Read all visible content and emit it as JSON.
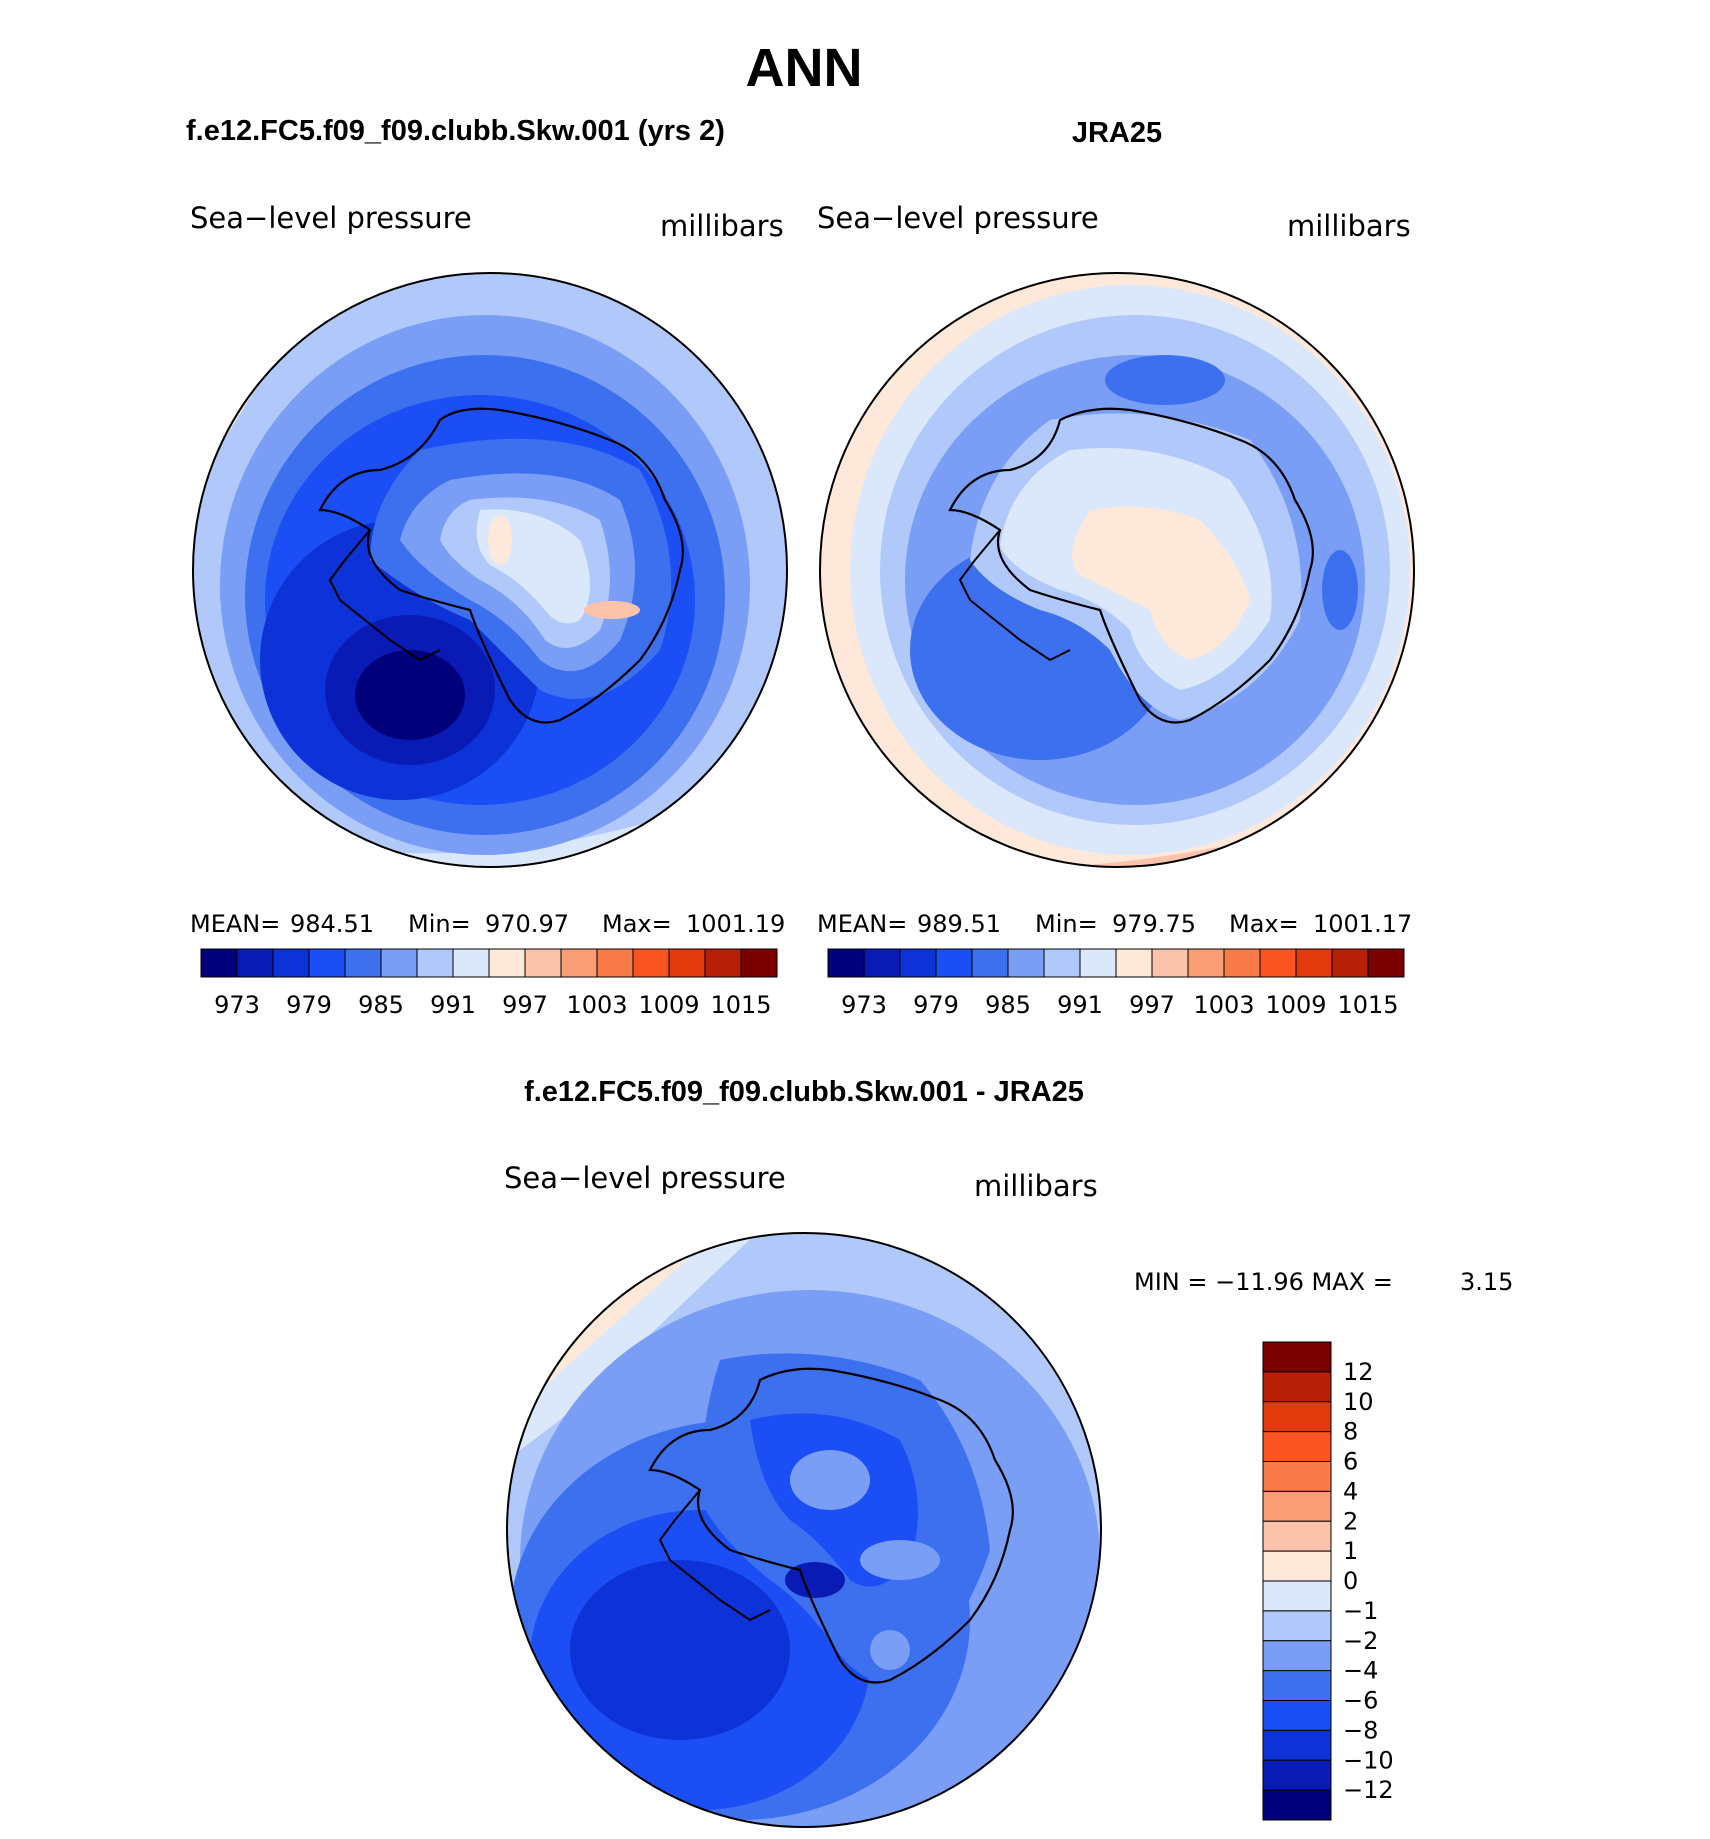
{
  "title": "ANN",
  "panels": [
    {
      "heading": "f.e12.FC5.f09_f09.clubb.Skw.001 (yrs 2)",
      "variable": "Sea−level pressure",
      "units": "millibars",
      "stats": {
        "mean_label": "MEAN=",
        "mean": "984.51",
        "min_label": "Min=",
        "min": "970.97",
        "max_label": "Max=",
        "max": "1001.19"
      }
    },
    {
      "heading": "JRA25",
      "variable": "Sea−level pressure",
      "units": "millibars",
      "stats": {
        "mean_label": "MEAN=",
        "mean": "989.51",
        "min_label": "Min=",
        "min": "979.75",
        "max_label": "Max=",
        "max": "1001.17"
      }
    },
    {
      "heading": "f.e12.FC5.f09_f09.clubb.Skw.001 - JRA25",
      "variable": "Sea−level pressure",
      "units": "millibars",
      "stats": {
        "minmax_text": "MIN = −11.96 MAX =",
        "max": "3.15"
      }
    }
  ],
  "colorbars": {
    "absolute": {
      "labels": [
        "973",
        "979",
        "985",
        "991",
        "997",
        "1003",
        "1009",
        "1015"
      ],
      "colors": [
        "#00007a",
        "#0a1ab4",
        "#0d32d8",
        "#1b4ef5",
        "#3d70ee",
        "#7a9ef5",
        "#b1c8fa",
        "#dbe8fb",
        "#fde8d9",
        "#fbc3aa",
        "#f99d76",
        "#f87a48",
        "#fb5321",
        "#e23a0d",
        "#b71f06",
        "#7b0000"
      ]
    },
    "difference": {
      "labels": [
        "12",
        "10",
        "8",
        "6",
        "4",
        "2",
        "1",
        "0",
        "−1",
        "−2",
        "−4",
        "−6",
        "−8",
        "−10",
        "−12"
      ],
      "colors": [
        "#7b0000",
        "#b71f06",
        "#e23a0d",
        "#fb5321",
        "#f87a48",
        "#f99d76",
        "#fbc3aa",
        "#fde8d9",
        "#dbe8fb",
        "#b1c8fa",
        "#7a9ef5",
        "#3d70ee",
        "#1b4ef5",
        "#0d32d8",
        "#0a1ab4",
        "#00007a"
      ]
    }
  }
}
